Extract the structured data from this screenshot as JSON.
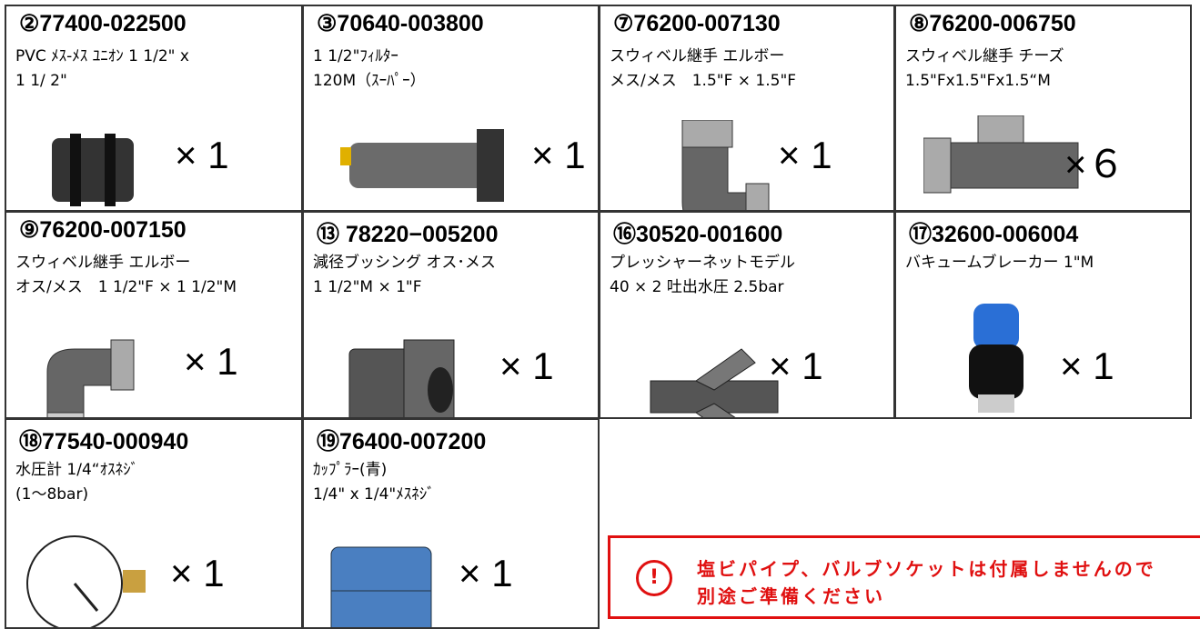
{
  "items": [
    {
      "code": "②77400-022500",
      "desc": [
        "PVC ﾒｽ-ﾒｽ ﾕﾆｵﾝ 1 1/2\" x",
        "1 1/ 2\""
      ],
      "qty": "× 1"
    },
    {
      "code": "③70640-003800",
      "desc": [
        "1 1/2\"ﾌｨﾙﾀｰ",
        "120M（ｽｰﾊﾟｰ）"
      ],
      "qty": "× 1"
    },
    {
      "code": "⑦76200-007130",
      "desc": [
        "スウィベル継手 エルボー",
        "メス/メス　1.5\"F × 1.5\"F"
      ],
      "qty": "× 1"
    },
    {
      "code": "⑧76200-006750",
      "desc": [
        "スウィベル継手 チーズ",
        "1.5\"Fx1.5\"Fx1.5“M"
      ],
      "qty": "×６"
    },
    {
      "code": "⑨76200-007150",
      "desc": [
        "スウィベル継手 エルボー",
        "オス/メス　1 1/2\"F × 1 1/2\"M"
      ],
      "qty": "× 1"
    },
    {
      "code": "⑬ 78220−005200",
      "desc": [
        "減径ブッシング オス･メス",
        "1 1/2\"M × 1\"F"
      ],
      "qty": "× 1"
    },
    {
      "code": "⑯30520-001600",
      "desc": [
        "プレッシャーネットモデル",
        "40 × 2 吐出水圧 2.5bar"
      ],
      "qty": "× 1"
    },
    {
      "code": "⑰32600-006004",
      "desc": [
        "バキュームブレーカー 1\"M"
      ],
      "qty": "× 1"
    },
    {
      "code": "⑱77540-000940",
      "desc": [
        "水圧計 1/4“ｵｽﾈｼﾞ",
        "(1～8bar)"
      ],
      "qty": "× 1"
    },
    {
      "code": "⑲76400-007200",
      "desc": [
        "ｶｯﾌﾟﾗｰ(青)",
        "1/4\" x 1/4\"ﾒｽﾈｼﾞ"
      ],
      "qty": "× 1"
    }
  ],
  "note": {
    "icon": "!",
    "lines": [
      "塩ビパイプ、バルブソケットは付属しませんので",
      "別途ご準備ください"
    ]
  }
}
